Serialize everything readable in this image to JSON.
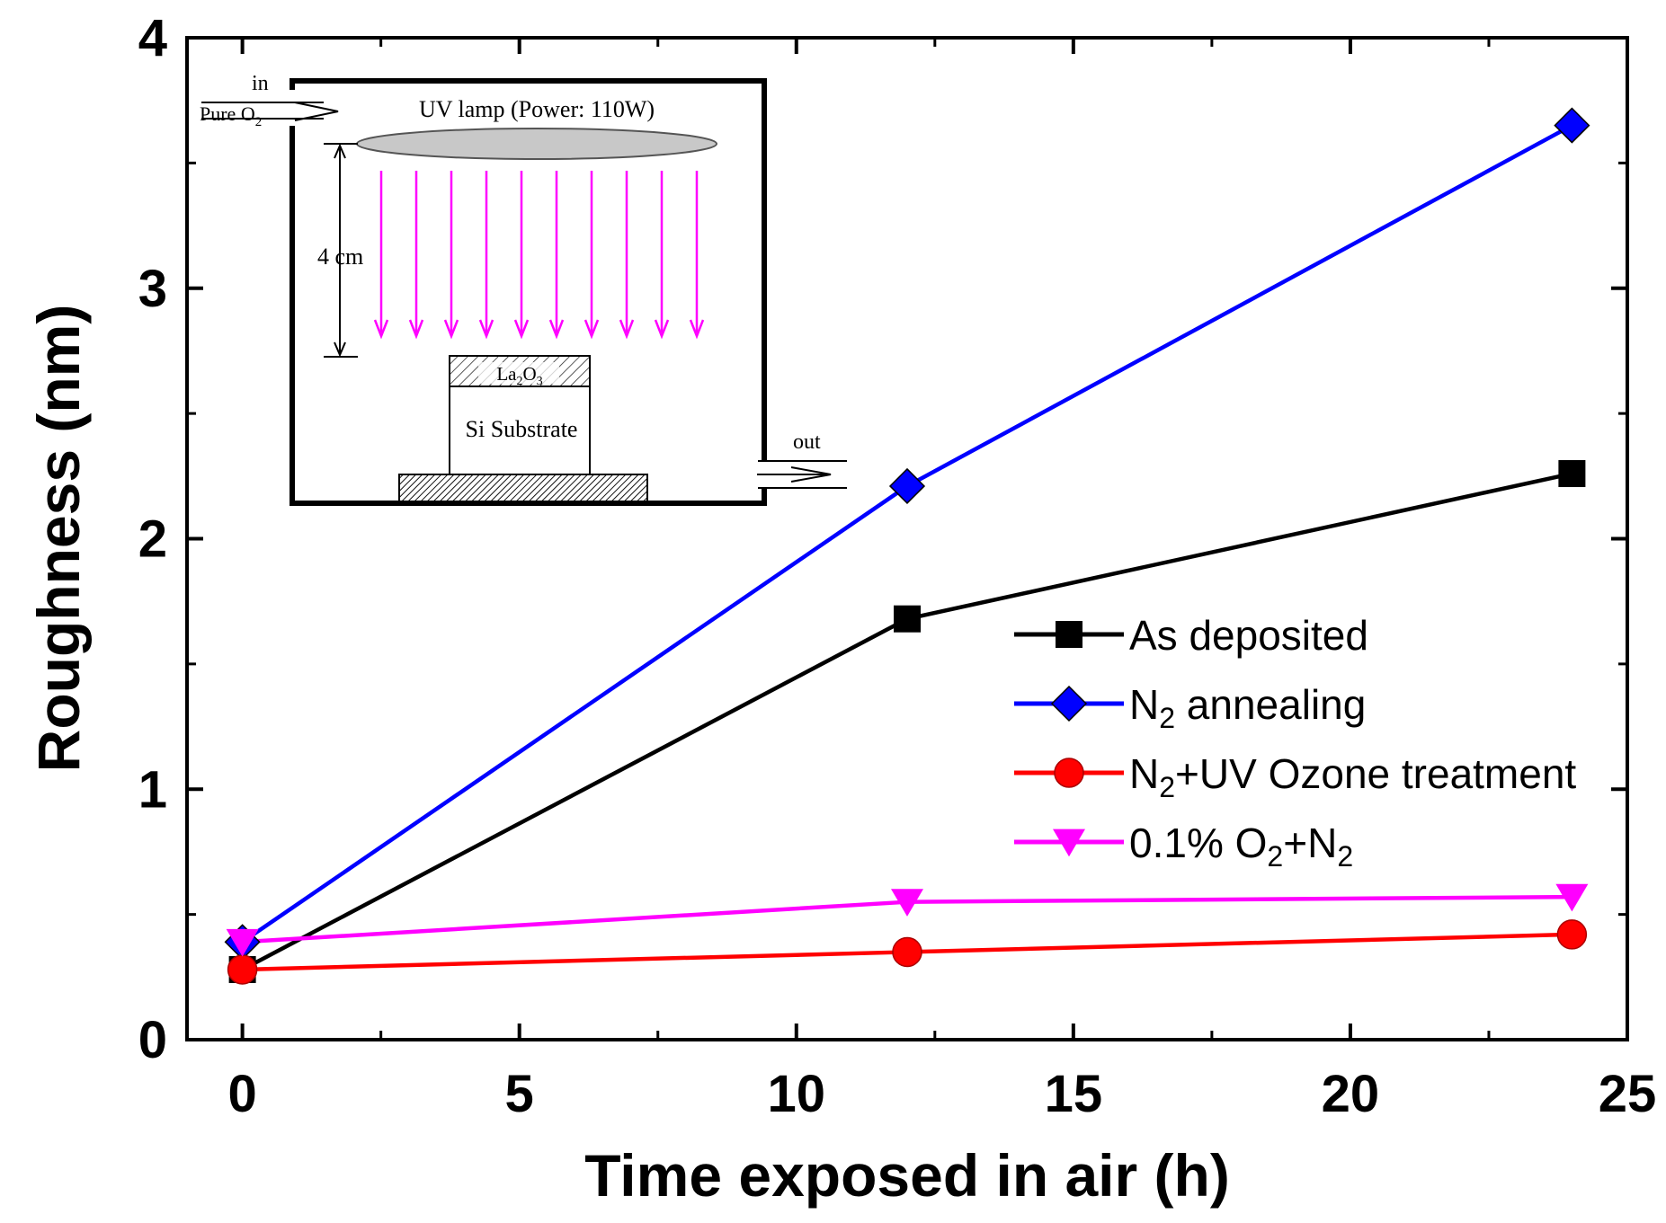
{
  "chart_data": {
    "type": "line",
    "xlabel": "Time exposed in air (h)",
    "ylabel": "Roughness (nm)",
    "xlim": [
      -1,
      25
    ],
    "ylim": [
      0,
      4
    ],
    "x_ticks": [
      0,
      5,
      10,
      15,
      20,
      25
    ],
    "x_tick_labels": [
      "0",
      "5",
      "10",
      "15",
      "20",
      "25"
    ],
    "y_ticks": [
      0,
      1,
      2,
      3,
      4
    ],
    "y_tick_labels": [
      "0",
      "1",
      "2",
      "3",
      "4"
    ],
    "x": [
      0,
      12,
      24
    ],
    "series": [
      {
        "name": "As deposited",
        "label_parts": [
          {
            "t": "As deposited"
          }
        ],
        "color": "#000000",
        "marker": "square",
        "values": [
          0.28,
          1.68,
          2.26
        ]
      },
      {
        "name": "N2 annealing",
        "label_parts": [
          {
            "t": "N"
          },
          {
            "t": "2",
            "sub": true
          },
          {
            "t": " annealing"
          }
        ],
        "color": "#0000ff",
        "marker": "diamond",
        "values": [
          0.39,
          2.21,
          3.65
        ]
      },
      {
        "name": "N2+UV Ozone treatment",
        "label_parts": [
          {
            "t": "N"
          },
          {
            "t": "2",
            "sub": true
          },
          {
            "t": "+UV Ozone treatment"
          }
        ],
        "color": "#ff0000",
        "marker": "circle",
        "values": [
          0.28,
          0.35,
          0.42
        ]
      },
      {
        "name": "0.1% O2+N2",
        "label_parts": [
          {
            "t": "0.1% O"
          },
          {
            "t": "2",
            "sub": true
          },
          {
            "t": "+N"
          },
          {
            "t": "2",
            "sub": true
          }
        ],
        "color": "#ff00ff",
        "marker": "triangle-down",
        "values": [
          0.39,
          0.55,
          0.57
        ]
      }
    ],
    "legend_position": "lower-right",
    "inset": {
      "in_label": "in",
      "gas_label": "Pure O",
      "gas_sub": "2",
      "lamp_label": "UV lamp (Power: 110W)",
      "distance_label": "4 cm",
      "film_label": "La",
      "film_sub1": "2",
      "film_mid": "O",
      "film_sub2": "3",
      "substrate_label": "Si Substrate",
      "out_label": "out",
      "arrow_color": "#ff00ff",
      "lamp_color": "#c8c8c8"
    }
  }
}
